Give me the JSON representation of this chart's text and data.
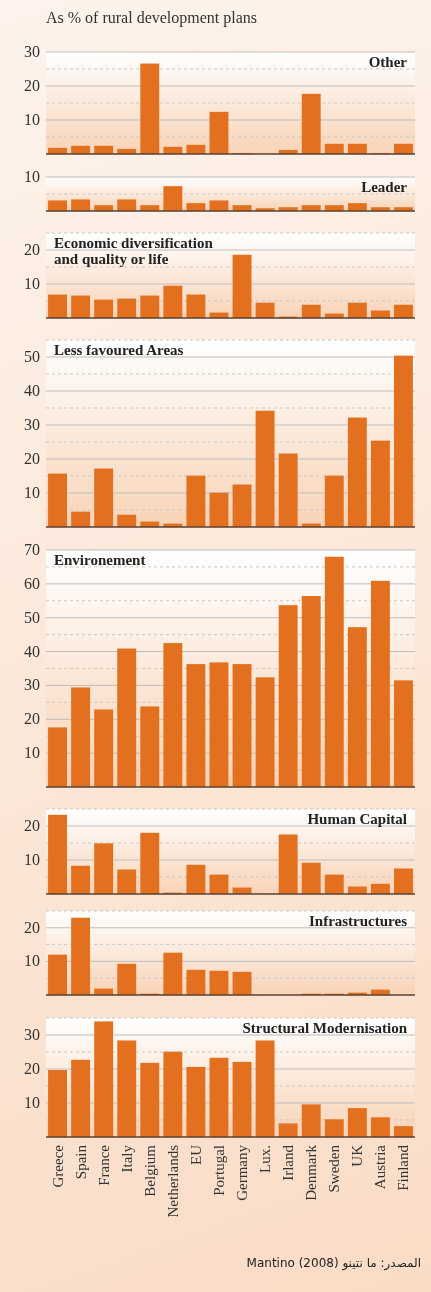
{
  "chart_data": [
    {
      "type": "bar",
      "ylabel": "As % of rural development plans",
      "title": "Other",
      "categories": [
        null,
        null,
        null,
        null,
        null,
        null,
        null,
        null,
        null,
        null,
        null,
        null,
        null,
        null,
        null,
        null
      ],
      "color": "#e2701e",
      "values": [
        1.8,
        2.4,
        2.4,
        1.5,
        26.6,
        2.1,
        2.7,
        12.4,
        0.3,
        0,
        1.2,
        17.7,
        3.0,
        3.0,
        0.3,
        3.0
      ],
      "ylim": [
        0,
        30
      ],
      "yticks": [
        {
          "value": 5,
          "label": null
        },
        10,
        {
          "value": 15,
          "label": null
        },
        20,
        {
          "value": 25,
          "label": null
        },
        30
      ],
      "grid": "y",
      "tick_labels": "y"
    },
    {
      "type": "bar",
      "title": "Leader",
      "categories": [
        null,
        null,
        null,
        null,
        null,
        null,
        null,
        null,
        null,
        null,
        null,
        null,
        null,
        null,
        null,
        null
      ],
      "color": "#e2701e",
      "values": [
        3.1,
        3.4,
        1.7,
        3.4,
        1.7,
        7.3,
        2.3,
        3.1,
        1.7,
        0.8,
        1.1,
        1.7,
        1.7,
        2.3,
        1.1,
        1.1
      ],
      "ylim": [
        0,
        10
      ],
      "yticks": [
        {
          "value": 5,
          "label": null
        },
        10
      ],
      "grid": "y",
      "tick_labels": "y"
    },
    {
      "type": "bar",
      "title": "Economic diversification and quality or life",
      "categories": [
        null,
        null,
        null,
        null,
        null,
        null,
        null,
        null,
        null,
        null,
        null,
        null,
        null,
        null,
        null,
        null
      ],
      "color": "#e2701e",
      "values": [
        6.9,
        6.6,
        5.4,
        5.7,
        6.6,
        9.5,
        6.9,
        1.6,
        18.6,
        4.5,
        0.4,
        3.9,
        1.3,
        4.5,
        2.2,
        3.9
      ],
      "ylim": [
        0,
        25
      ],
      "yticks": [
        {
          "value": 5,
          "label": null
        },
        10,
        {
          "value": 15,
          "label": null
        },
        20,
        {
          "value": 25,
          "label": null
        }
      ],
      "grid": "y",
      "tick_labels": "y"
    },
    {
      "type": "bar",
      "title": "Less favoured Areas",
      "categories": [
        null,
        null,
        null,
        null,
        null,
        null,
        null,
        null,
        null,
        null,
        null,
        null,
        null,
        null,
        null,
        null
      ],
      "color": "#e2701e",
      "values": [
        15.7,
        4.5,
        17.2,
        3.6,
        1.6,
        1.0,
        15.1,
        10.1,
        12.5,
        34.2,
        21.6,
        1.0,
        15.1,
        32.2,
        25.4,
        50.4
      ],
      "ylim": [
        0,
        55
      ],
      "yticks": [
        {
          "value": 5,
          "label": null
        },
        10,
        {
          "value": 15,
          "label": null
        },
        20,
        {
          "value": 25,
          "label": null
        },
        30,
        {
          "value": 35,
          "label": null
        },
        40,
        {
          "value": 45,
          "label": null
        },
        50,
        {
          "value": 55,
          "label": null
        }
      ],
      "grid": "y",
      "tick_labels": "y"
    },
    {
      "type": "bar",
      "title": "Environement",
      "categories": [
        null,
        null,
        null,
        null,
        null,
        null,
        null,
        null,
        null,
        null,
        null,
        null,
        null,
        null,
        null,
        null
      ],
      "color": "#e2701e",
      "values": [
        17.6,
        29.4,
        22.9,
        40.9,
        23.8,
        42.5,
        36.3,
        36.8,
        36.3,
        32.4,
        53.7,
        56.4,
        68,
        47.2,
        60.9,
        31.5
      ],
      "ylim": [
        0,
        70
      ],
      "yticks": [
        {
          "value": 5,
          "label": null
        },
        10,
        {
          "value": 15,
          "label": null
        },
        20,
        {
          "value": 25,
          "label": null
        },
        30,
        {
          "value": 35,
          "label": null
        },
        40,
        {
          "value": 45,
          "label": null
        },
        50,
        {
          "value": 55,
          "label": null
        },
        60,
        {
          "value": 65,
          "label": null
        },
        70
      ],
      "grid": "y",
      "tick_labels": "y"
    },
    {
      "type": "bar",
      "title": "Human Capital",
      "categories": [
        null,
        null,
        null,
        null,
        null,
        null,
        null,
        null,
        null,
        null,
        null,
        null,
        null,
        null,
        null,
        null
      ],
      "color": "#e2701e",
      "values": [
        23.3,
        8.3,
        14.9,
        7.2,
        18.0,
        0.4,
        8.6,
        5.7,
        1.9,
        0,
        17.5,
        9.2,
        5.7,
        2.2,
        3.0,
        7.5
      ],
      "ylim": [
        0,
        25
      ],
      "yticks": [
        {
          "value": 5,
          "label": null
        },
        10,
        {
          "value": 15,
          "label": null
        },
        20,
        {
          "value": 25,
          "label": null
        }
      ],
      "grid": "y",
      "tick_labels": "y"
    },
    {
      "type": "bar",
      "title": "Infrastructures",
      "categories": [
        null,
        null,
        null,
        null,
        null,
        null,
        null,
        null,
        null,
        null,
        null,
        null,
        null,
        null,
        null,
        null
      ],
      "color": "#e2701e",
      "values": [
        12.0,
        23.0,
        1.9,
        9.3,
        0.4,
        12.6,
        7.5,
        7.2,
        6.9,
        0,
        0,
        0.4,
        0.4,
        0.7,
        1.6,
        0
      ],
      "ylim": [
        0,
        25
      ],
      "yticks": [
        {
          "value": 5,
          "label": null
        },
        10,
        {
          "value": 15,
          "label": null
        },
        20,
        {
          "value": 25,
          "label": null
        }
      ],
      "grid": "y",
      "tick_labels": "y"
    },
    {
      "type": "bar",
      "title": "Structural Modernisation",
      "categories": [
        "Greece",
        "Spain",
        "France",
        "Italy",
        "Belgium",
        "Netherlands",
        "EU",
        "Portugal",
        "Germany",
        "Lux.",
        "Irland",
        "Denmark",
        "Sweden",
        "UK",
        "Austria",
        "Finland"
      ],
      "color": "#e2701e",
      "values": [
        19.7,
        22.7,
        34.0,
        28.4,
        21.8,
        25.1,
        20.6,
        23.3,
        22.1,
        28.4,
        4.0,
        9.6,
        5.2,
        8.5,
        5.8,
        3.2
      ],
      "ylim": [
        0,
        35
      ],
      "yticks": [
        {
          "value": 5,
          "label": null
        },
        10,
        {
          "value": 15,
          "label": null
        },
        20,
        {
          "value": 25,
          "label": null
        },
        30,
        {
          "value": 35,
          "label": null
        }
      ],
      "grid": "y",
      "annotations": [
        "المصدر: ما نتينو Mantino (2008)"
      ]
    }
  ]
}
